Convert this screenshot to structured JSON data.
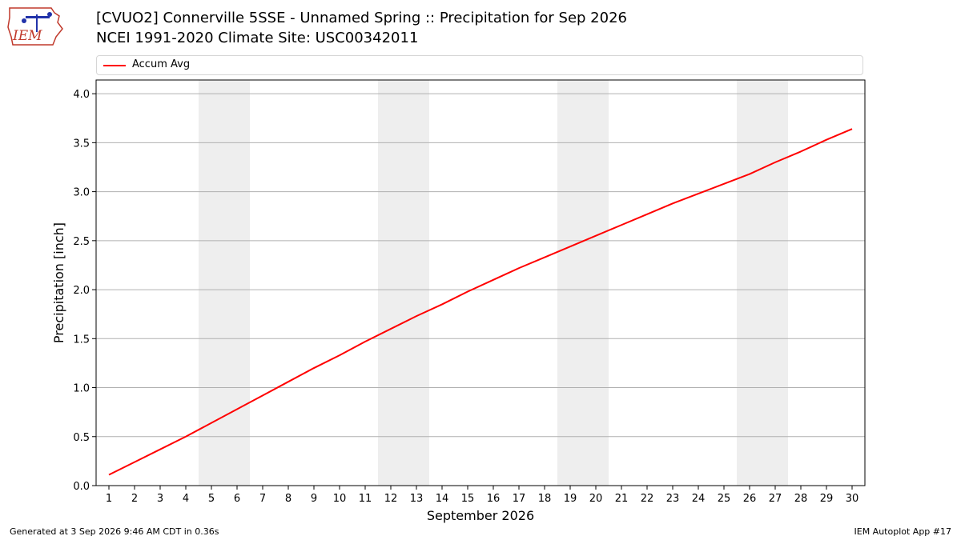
{
  "header": {
    "logo_text": "IEM",
    "title_line1": "[CVUO2] Connerville 5SSE - Unnamed Spring :: Precipitation for Sep 2026",
    "title_line2": "NCEI 1991-2020 Climate Site: USC00342011"
  },
  "footer": {
    "generated": "Generated at 3 Sep 2026 9:46 AM CDT in 0.36s",
    "app": "IEM Autoplot App #17"
  },
  "colors": {
    "series": "#ff0000",
    "weekend_band": "#eeeeee",
    "grid": "#b0b0b0"
  },
  "chart_data": {
    "type": "line",
    "title": "",
    "xlabel": "September 2026",
    "ylabel": "Precipitation [inch]",
    "x": [
      1,
      2,
      3,
      4,
      5,
      6,
      7,
      8,
      9,
      10,
      11,
      12,
      13,
      14,
      15,
      16,
      17,
      18,
      19,
      20,
      21,
      22,
      23,
      24,
      25,
      26,
      27,
      28,
      29,
      30
    ],
    "xlim": [
      0.5,
      30.5
    ],
    "ylim": [
      0,
      4.14
    ],
    "yticks": [
      0.0,
      0.5,
      1.0,
      1.5,
      2.0,
      2.5,
      3.0,
      3.5,
      4.0
    ],
    "ytick_labels": [
      "0.0",
      "0.5",
      "1.0",
      "1.5",
      "2.0",
      "2.5",
      "3.0",
      "3.5",
      "4.0"
    ],
    "grid": "y",
    "legend": "top",
    "weekend_bands": [
      [
        4.5,
        6.5
      ],
      [
        11.5,
        13.5
      ],
      [
        18.5,
        20.5
      ],
      [
        25.5,
        27.5
      ]
    ],
    "series": [
      {
        "name": "Accum Avg",
        "values": [
          0.11,
          0.24,
          0.37,
          0.5,
          0.64,
          0.78,
          0.92,
          1.06,
          1.2,
          1.33,
          1.47,
          1.6,
          1.73,
          1.85,
          1.98,
          2.1,
          2.22,
          2.33,
          2.44,
          2.55,
          2.66,
          2.77,
          2.88,
          2.98,
          3.08,
          3.18,
          3.3,
          3.41,
          3.53,
          3.64
        ]
      }
    ]
  }
}
